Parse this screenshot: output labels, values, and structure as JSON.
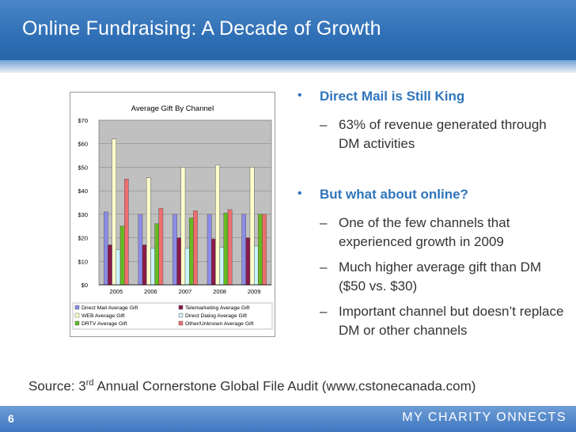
{
  "slide": {
    "title": "Online Fundraising: A Decade of Growth",
    "page_number": "6",
    "logo_text": "MY CHARITY  ONNECTS",
    "colors": {
      "header": "#2d6db3",
      "accent": "#2f75bc",
      "text": "#333333"
    }
  },
  "bullets": [
    {
      "heading": "Direct Mail is Still King",
      "subs": [
        "63% of revenue generated through DM activities"
      ]
    },
    {
      "heading": "But what about online?",
      "subs": [
        "One of the few channels that experienced growth in 2009",
        "Much higher average gift than DM ($50 vs. $30)",
        "Important channel but doesn’t replace DM or other channels"
      ]
    }
  ],
  "source": {
    "prefix": "Source:  3",
    "sup": "rd",
    "rest": " Annual Cornerstone Global File Audit (www.cstonecanada.com)"
  },
  "chart_data": {
    "type": "bar",
    "title": "Average Gift By Channel",
    "categories": [
      "2005",
      "2006",
      "2007",
      "2008",
      "2009"
    ],
    "ylim": [
      0,
      70
    ],
    "yticks": [
      "$0",
      "$10",
      "$20",
      "$30",
      "$40",
      "$50",
      "$60",
      "$70"
    ],
    "grid": true,
    "legend_position": "bottom",
    "series": [
      {
        "name": "Direct Mail Average Gift",
        "color": "#8c8ce8",
        "values": [
          31,
          30,
          30,
          30,
          30
        ]
      },
      {
        "name": "Telemarketing Average Gift",
        "color": "#8b1a4a",
        "values": [
          17,
          17,
          20,
          19.5,
          20
        ]
      },
      {
        "name": "WEB Average Gift",
        "color": "#ffffcc",
        "values": [
          62,
          45.5,
          50,
          51,
          50
        ]
      },
      {
        "name": "Direct Dialog Average Gift",
        "color": "#ccf2fa",
        "values": [
          15,
          15.5,
          15.5,
          16,
          16.5
        ]
      },
      {
        "name": "DRTV Average Gift",
        "color": "#66bb22",
        "values": [
          25,
          26,
          28.5,
          30.5,
          30
        ]
      },
      {
        "name": "Other/Unknown Average Gift",
        "color": "#ee6e6e",
        "values": [
          45,
          32.5,
          31.5,
          32,
          30
        ]
      }
    ]
  }
}
